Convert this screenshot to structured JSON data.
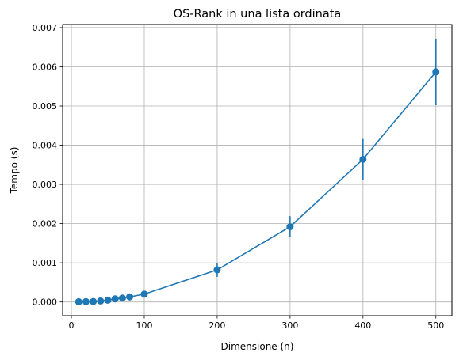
{
  "chart_data": {
    "type": "line",
    "title": "OS-Rank in una lista ordinata",
    "xlabel": "Dimensione (n)",
    "ylabel": "Tempo (s)",
    "xlim": [
      -12,
      522
    ],
    "ylim": [
      -0.00035,
      0.00708
    ],
    "grid": true,
    "x_ticks": [
      0,
      100,
      200,
      300,
      400,
      500
    ],
    "x_tick_labels": [
      "0",
      "100",
      "200",
      "300",
      "400",
      "500"
    ],
    "y_ticks": [
      0,
      0.001,
      0.002,
      0.003,
      0.004,
      0.005,
      0.006,
      0.007
    ],
    "y_tick_labels": [
      "0.000",
      "0.001",
      "0.002",
      "0.003",
      "0.004",
      "0.005",
      "0.006",
      "0.007"
    ],
    "series": [
      {
        "color": "#1f77b4",
        "marker": "circle",
        "x": [
          10,
          20,
          30,
          40,
          50,
          60,
          70,
          80,
          100,
          200,
          300,
          400,
          500
        ],
        "y": [
          5e-06,
          8e-06,
          1.2e-05,
          2.5e-05,
          4.5e-05,
          8e-05,
          0.0001,
          0.00013,
          0.0002,
          0.00082,
          0.00192,
          0.00364,
          0.00587
        ],
        "err": [
          2e-06,
          3e-06,
          4e-06,
          6e-06,
          8e-06,
          1e-05,
          1.5e-05,
          2e-05,
          3.5e-05,
          0.00018,
          0.00027,
          0.00052,
          0.00085
        ]
      }
    ]
  }
}
